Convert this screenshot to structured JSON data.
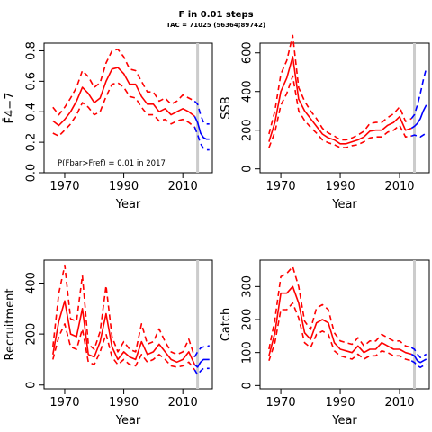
{
  "figure": {
    "title": "F in 0.01 steps",
    "subtitle": "TAC = 71025 (56364;89742)"
  },
  "colors": {
    "historic": "#ff0000",
    "projection": "#0000ff",
    "cutoff_line": "#cccccc"
  },
  "chart_data": [
    {
      "type": "line",
      "id": "fbar",
      "ylabel": "F̄4−7",
      "xlabel": "Year",
      "xlim": [
        1963,
        2020
      ],
      "ylim": [
        0,
        0.85
      ],
      "xticks": [
        1970,
        1990,
        2010
      ],
      "yticks": [
        0.0,
        0.2,
        0.4,
        0.6,
        0.8
      ],
      "ytick_labels": [
        "0.0",
        "0.2",
        "0.4",
        "0.6",
        "0.8"
      ],
      "vline_year": 2015,
      "annotation": "P(Fbar>Fref) = 0.01  in 2017",
      "series": [
        {
          "role": "historic",
          "style": "solid",
          "x": [
            1966,
            1968,
            1970,
            1972,
            1974,
            1976,
            1978,
            1980,
            1982,
            1984,
            1986,
            1988,
            1990,
            1992,
            1994,
            1996,
            1998,
            2000,
            2002,
            2004,
            2006,
            2008,
            2010,
            2012,
            2014
          ],
          "values": [
            0.34,
            0.31,
            0.35,
            0.4,
            0.47,
            0.56,
            0.52,
            0.46,
            0.49,
            0.6,
            0.68,
            0.69,
            0.65,
            0.58,
            0.58,
            0.5,
            0.45,
            0.45,
            0.4,
            0.42,
            0.38,
            0.4,
            0.42,
            0.4,
            0.37
          ]
        },
        {
          "role": "historic",
          "style": "dashed",
          "x": [
            1966,
            1968,
            1970,
            1972,
            1974,
            1976,
            1978,
            1980,
            1982,
            1984,
            1986,
            1988,
            1990,
            1992,
            1994,
            1996,
            1998,
            2000,
            2002,
            2004,
            2006,
            2008,
            2010,
            2012,
            2014
          ],
          "values": [
            0.43,
            0.38,
            0.43,
            0.49,
            0.56,
            0.67,
            0.63,
            0.56,
            0.59,
            0.72,
            0.8,
            0.81,
            0.76,
            0.68,
            0.67,
            0.6,
            0.53,
            0.53,
            0.47,
            0.49,
            0.45,
            0.47,
            0.51,
            0.49,
            0.47
          ]
        },
        {
          "role": "historic",
          "style": "dashed",
          "x": [
            1966,
            1968,
            1970,
            1972,
            1974,
            1976,
            1978,
            1980,
            1982,
            1984,
            1986,
            1988,
            1990,
            1992,
            1994,
            1996,
            1998,
            2000,
            2002,
            2004,
            2006,
            2008,
            2010,
            2012,
            2014
          ],
          "values": [
            0.26,
            0.24,
            0.28,
            0.32,
            0.38,
            0.46,
            0.43,
            0.38,
            0.4,
            0.5,
            0.58,
            0.59,
            0.56,
            0.5,
            0.49,
            0.43,
            0.38,
            0.38,
            0.34,
            0.35,
            0.32,
            0.34,
            0.35,
            0.33,
            0.3
          ]
        },
        {
          "role": "projection",
          "style": "solid",
          "x": [
            2014,
            2015,
            2016,
            2017,
            2018,
            2019
          ],
          "values": [
            0.37,
            0.33,
            0.26,
            0.23,
            0.22,
            0.22
          ]
        },
        {
          "role": "projection",
          "style": "dashed",
          "x": [
            2014,
            2015,
            2016,
            2017,
            2018,
            2019
          ],
          "values": [
            0.47,
            0.45,
            0.38,
            0.33,
            0.32,
            0.32
          ]
        },
        {
          "role": "projection",
          "style": "dashed",
          "x": [
            2014,
            2015,
            2016,
            2017,
            2018,
            2019
          ],
          "values": [
            0.3,
            0.25,
            0.19,
            0.16,
            0.15,
            0.15
          ]
        }
      ]
    },
    {
      "type": "line",
      "id": "ssb",
      "ylabel": "SSB",
      "xlabel": "Year",
      "xlim": [
        1963,
        2020
      ],
      "ylim": [
        -20,
        650
      ],
      "xticks": [
        1970,
        1990,
        2010
      ],
      "yticks": [
        0,
        200,
        400,
        600
      ],
      "ytick_labels": [
        "0",
        "200",
        "400",
        "600"
      ],
      "vline_year": 2015,
      "series": [
        {
          "role": "historic",
          "style": "solid",
          "x": [
            1966,
            1968,
            1970,
            1972,
            1974,
            1976,
            1978,
            1980,
            1982,
            1984,
            1986,
            1988,
            1990,
            1992,
            1994,
            1996,
            1998,
            2000,
            2002,
            2004,
            2006,
            2008,
            2010,
            2012,
            2014
          ],
          "values": [
            140,
            240,
            400,
            470,
            580,
            360,
            300,
            260,
            220,
            180,
            160,
            150,
            130,
            130,
            140,
            150,
            165,
            195,
            200,
            200,
            225,
            240,
            270,
            200,
            210
          ]
        },
        {
          "role": "historic",
          "style": "dashed",
          "x": [
            1966,
            1968,
            1970,
            1972,
            1974,
            1976,
            1978,
            1980,
            1982,
            1984,
            1986,
            1988,
            1990,
            1992,
            1994,
            1996,
            1998,
            2000,
            2002,
            2004,
            2006,
            2008,
            2010,
            2012,
            2014
          ],
          "values": [
            180,
            300,
            490,
            560,
            690,
            420,
            350,
            300,
            260,
            210,
            185,
            170,
            150,
            150,
            160,
            175,
            195,
            235,
            240,
            240,
            265,
            285,
            320,
            245,
            260
          ]
        },
        {
          "role": "historic",
          "style": "dashed",
          "x": [
            1966,
            1968,
            1970,
            1972,
            1974,
            1976,
            1978,
            1980,
            1982,
            1984,
            1986,
            1988,
            1990,
            1992,
            1994,
            1996,
            1998,
            2000,
            2002,
            2004,
            2006,
            2008,
            2010,
            2012,
            2014
          ],
          "values": [
            110,
            190,
            330,
            390,
            480,
            300,
            250,
            215,
            185,
            150,
            135,
            125,
            110,
            110,
            120,
            125,
            140,
            160,
            165,
            165,
            190,
            200,
            225,
            165,
            170
          ]
        },
        {
          "role": "projection",
          "style": "solid",
          "x": [
            2014,
            2015,
            2016,
            2017,
            2018,
            2019
          ],
          "values": [
            210,
            220,
            235,
            260,
            300,
            330
          ]
        },
        {
          "role": "projection",
          "style": "dashed",
          "x": [
            2014,
            2015,
            2016,
            2017,
            2018,
            2019
          ],
          "values": [
            260,
            280,
            330,
            390,
            460,
            520
          ]
        },
        {
          "role": "projection",
          "style": "dashed",
          "x": [
            2014,
            2015,
            2016,
            2017,
            2018,
            2019
          ],
          "values": [
            170,
            175,
            170,
            165,
            175,
            185
          ]
        }
      ]
    },
    {
      "type": "line",
      "id": "recruitment",
      "ylabel": "Recruitment",
      "xlabel": "Year",
      "xlim": [
        1963,
        2020
      ],
      "ylim": [
        -15,
        490
      ],
      "xticks": [
        1970,
        1990,
        2010
      ],
      "yticks": [
        0,
        200,
        400
      ],
      "ytick_labels": [
        "0",
        "200",
        "400"
      ],
      "vline_year": 2015,
      "series": [
        {
          "role": "historic",
          "style": "solid",
          "x": [
            1966,
            1968,
            1970,
            1972,
            1974,
            1976,
            1978,
            1980,
            1982,
            1984,
            1986,
            1988,
            1990,
            1992,
            1994,
            1996,
            1998,
            2000,
            2002,
            2004,
            2006,
            2008,
            2010,
            2012,
            2014
          ],
          "values": [
            120,
            250,
            330,
            200,
            190,
            300,
            120,
            110,
            170,
            280,
            150,
            100,
            130,
            110,
            100,
            170,
            120,
            130,
            160,
            130,
            100,
            90,
            100,
            130,
            80
          ]
        },
        {
          "role": "historic",
          "style": "dashed",
          "x": [
            1966,
            1968,
            1970,
            1972,
            1974,
            1976,
            1978,
            1980,
            1982,
            1984,
            1986,
            1988,
            1990,
            1992,
            1994,
            1996,
            1998,
            2000,
            2002,
            2004,
            2006,
            2008,
            2010,
            2012,
            2014
          ],
          "values": [
            150,
            360,
            470,
            260,
            250,
            430,
            160,
            140,
            210,
            390,
            190,
            130,
            170,
            140,
            130,
            240,
            160,
            170,
            220,
            170,
            130,
            120,
            130,
            180,
            110
          ]
        },
        {
          "role": "historic",
          "style": "dashed",
          "x": [
            1966,
            1968,
            1970,
            1972,
            1974,
            1976,
            1978,
            1980,
            1982,
            1984,
            1986,
            1988,
            1990,
            1992,
            1994,
            1996,
            1998,
            2000,
            2002,
            2004,
            2006,
            2008,
            2010,
            2012,
            2014
          ],
          "values": [
            100,
            190,
            240,
            150,
            140,
            220,
            90,
            80,
            130,
            200,
            110,
            80,
            100,
            80,
            75,
            120,
            90,
            100,
            120,
            100,
            75,
            70,
            75,
            90,
            60
          ]
        },
        {
          "role": "projection",
          "style": "solid",
          "x": [
            2014,
            2015,
            2016,
            2017,
            2018,
            2019
          ],
          "values": [
            80,
            70,
            90,
            100,
            100,
            100
          ]
        },
        {
          "role": "projection",
          "style": "dashed",
          "x": [
            2014,
            2015,
            2016,
            2017,
            2018,
            2019
          ],
          "values": [
            110,
            130,
            145,
            150,
            150,
            155
          ]
        },
        {
          "role": "projection",
          "style": "dashed",
          "x": [
            2014,
            2015,
            2016,
            2017,
            2018,
            2019
          ],
          "values": [
            60,
            40,
            55,
            65,
            65,
            65
          ]
        }
      ]
    },
    {
      "type": "line",
      "id": "catch",
      "ylabel": "Catch",
      "xlabel": "Year",
      "xlim": [
        1963,
        2020
      ],
      "ylim": [
        -10,
        380
      ],
      "xticks": [
        1970,
        1990,
        2010
      ],
      "yticks": [
        0,
        100,
        200,
        300
      ],
      "ytick_labels": [
        "0",
        "100",
        "200",
        "300"
      ],
      "vline_year": 2015,
      "series": [
        {
          "role": "historic",
          "style": "solid",
          "x": [
            1966,
            1968,
            1970,
            1972,
            1974,
            1976,
            1978,
            1980,
            1982,
            1984,
            1986,
            1988,
            1990,
            1992,
            1994,
            1996,
            1998,
            2000,
            2002,
            2004,
            2006,
            2008,
            2010,
            2012,
            2014
          ],
          "values": [
            90,
            160,
            280,
            280,
            300,
            250,
            160,
            140,
            190,
            200,
            190,
            130,
            110,
            105,
            100,
            120,
            100,
            110,
            110,
            130,
            120,
            110,
            110,
            100,
            95
          ]
        },
        {
          "role": "historic",
          "style": "dashed",
          "x": [
            1966,
            1968,
            1970,
            1972,
            1974,
            1976,
            1978,
            1980,
            1982,
            1984,
            1986,
            1988,
            1990,
            1992,
            1994,
            1996,
            1998,
            2000,
            2002,
            2004,
            2006,
            2008,
            2010,
            2012,
            2014
          ],
          "values": [
            110,
            200,
            330,
            340,
            360,
            300,
            195,
            170,
            235,
            245,
            230,
            160,
            135,
            130,
            125,
            145,
            120,
            135,
            135,
            155,
            145,
            135,
            135,
            120,
            115
          ]
        },
        {
          "role": "historic",
          "style": "dashed",
          "x": [
            1966,
            1968,
            1970,
            1972,
            1974,
            1976,
            1978,
            1980,
            1982,
            1984,
            1986,
            1988,
            1990,
            1992,
            1994,
            1996,
            1998,
            2000,
            2002,
            2004,
            2006,
            2008,
            2010,
            2012,
            2014
          ],
          "values": [
            75,
            130,
            230,
            230,
            250,
            205,
            130,
            115,
            155,
            165,
            155,
            105,
            90,
            85,
            80,
            95,
            80,
            90,
            90,
            105,
            100,
            90,
            90,
            80,
            75
          ]
        },
        {
          "role": "projection",
          "style": "solid",
          "x": [
            2014,
            2015,
            2016,
            2017,
            2018,
            2019
          ],
          "values": [
            95,
            90,
            75,
            70,
            75,
            80
          ]
        },
        {
          "role": "projection",
          "style": "dashed",
          "x": [
            2014,
            2015,
            2016,
            2017,
            2018,
            2019
          ],
          "values": [
            115,
            110,
            95,
            85,
            90,
            95
          ]
        },
        {
          "role": "projection",
          "style": "dashed",
          "x": [
            2014,
            2015,
            2016,
            2017,
            2018,
            2019
          ],
          "values": [
            75,
            70,
            60,
            55,
            60,
            65
          ]
        }
      ]
    }
  ]
}
